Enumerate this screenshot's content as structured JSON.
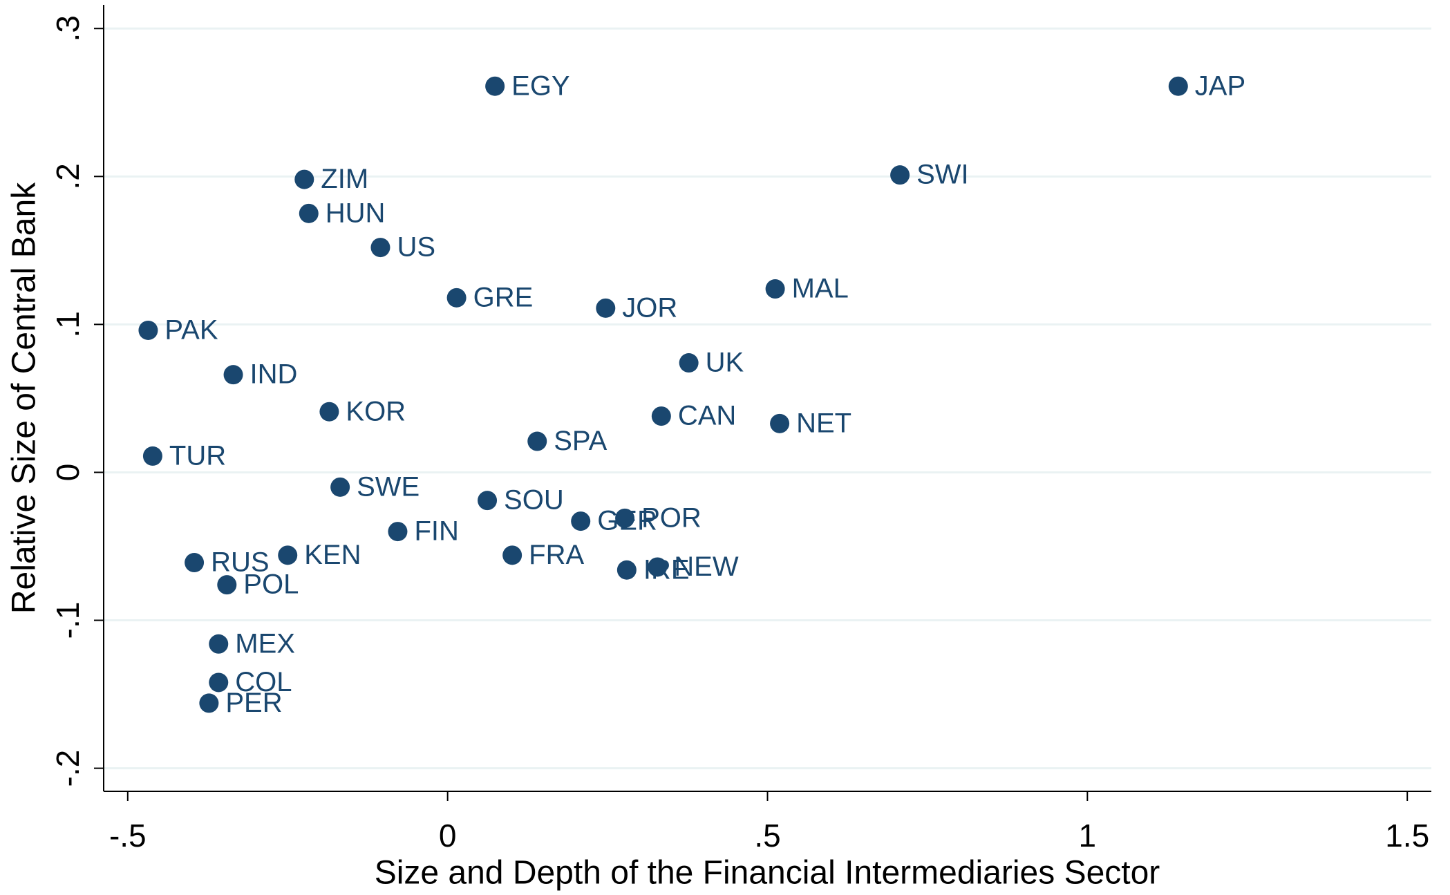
{
  "chart_data": {
    "type": "scatter",
    "xlabel": "Size and Depth of the Financial Intermediaries Sector",
    "ylabel": "Relative Size of Central Bank",
    "color": "#1a476f",
    "grid": true,
    "xlim": [
      -0.5376,
      1.5376
    ],
    "ylim": [
      -0.2156,
      0.316
    ],
    "xticks": [
      {
        "value": -0.5,
        "label": "-.5"
      },
      0,
      {
        "value": 0.5,
        "label": ".5"
      },
      1,
      1.5
    ],
    "yticks": [
      {
        "value": -0.2,
        "label": "-.2"
      },
      {
        "value": -0.1,
        "label": "-.1"
      },
      0,
      {
        "value": 0.1,
        "label": ".1"
      },
      {
        "value": 0.2,
        "label": ".2"
      },
      {
        "value": 0.3,
        "label": ".3"
      }
    ],
    "labels": [
      "EGY",
      "JAP",
      "SWI",
      "ZIM",
      "HUN",
      "US",
      "GRE",
      "JOR",
      "MAL",
      "PAK",
      "IND",
      "UK",
      "KOR",
      "CAN",
      "NET",
      "SPA",
      "TUR",
      "SWE",
      "SOU",
      "GER",
      "POR",
      "FIN",
      "KEN",
      "FRA",
      "RUS",
      "IRE",
      "NEW",
      "POL",
      "MEX",
      "COL",
      "PER"
    ],
    "x": [
      0.074,
      1.142,
      0.707,
      -0.224,
      -0.217,
      -0.105,
      0.014,
      0.247,
      0.512,
      -0.468,
      -0.335,
      0.377,
      -0.185,
      0.334,
      0.519,
      0.14,
      -0.461,
      -0.168,
      0.062,
      0.208,
      0.277,
      -0.078,
      -0.25,
      0.101,
      -0.396,
      0.28,
      0.328,
      -0.345,
      -0.358,
      -0.358,
      -0.373
    ],
    "values": [
      0.261,
      0.261,
      0.201,
      0.198,
      0.175,
      0.152,
      0.118,
      0.111,
      0.124,
      0.096,
      0.066,
      0.074,
      0.041,
      0.038,
      0.033,
      0.021,
      0.011,
      -0.01,
      -0.019,
      -0.033,
      -0.031,
      -0.04,
      -0.056,
      -0.056,
      -0.061,
      -0.066,
      -0.064,
      -0.076,
      -0.116,
      -0.142,
      -0.156
    ]
  }
}
